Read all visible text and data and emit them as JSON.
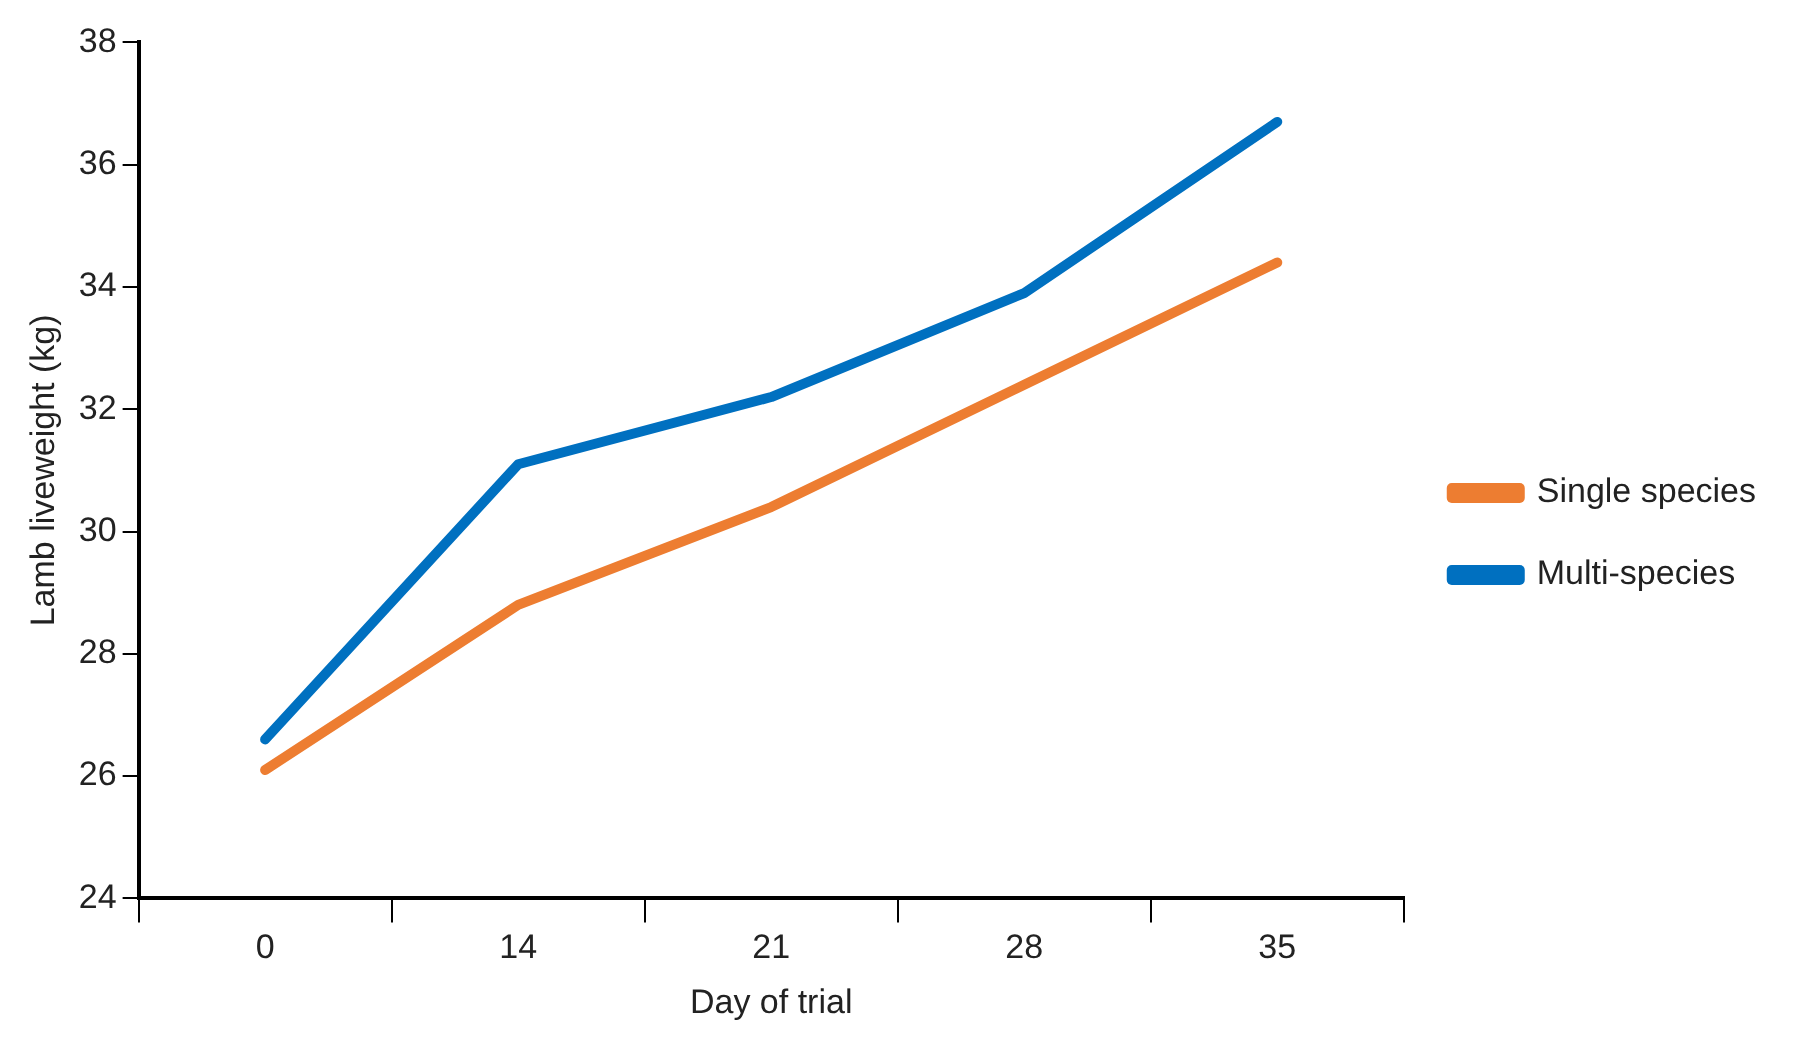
{
  "chart_data": {
    "type": "line",
    "xlabel": "Day of trial",
    "ylabel": "Lamb liveweight (kg)",
    "categories": [
      "0",
      "14",
      "21",
      "28",
      "35"
    ],
    "series": [
      {
        "name": "Single species",
        "color": "#ed7d31",
        "values": [
          26.1,
          28.8,
          30.4,
          32.4,
          34.4
        ]
      },
      {
        "name": "Multi-species",
        "color": "#0070c0",
        "values": [
          26.6,
          31.1,
          32.2,
          33.9,
          36.7
        ]
      }
    ],
    "ylim": [
      24,
      38
    ],
    "yticks": [
      24,
      26,
      28,
      30,
      32,
      34,
      36,
      38
    ],
    "grid": false,
    "legend": "right",
    "marker": "none",
    "line_style": "solid"
  }
}
